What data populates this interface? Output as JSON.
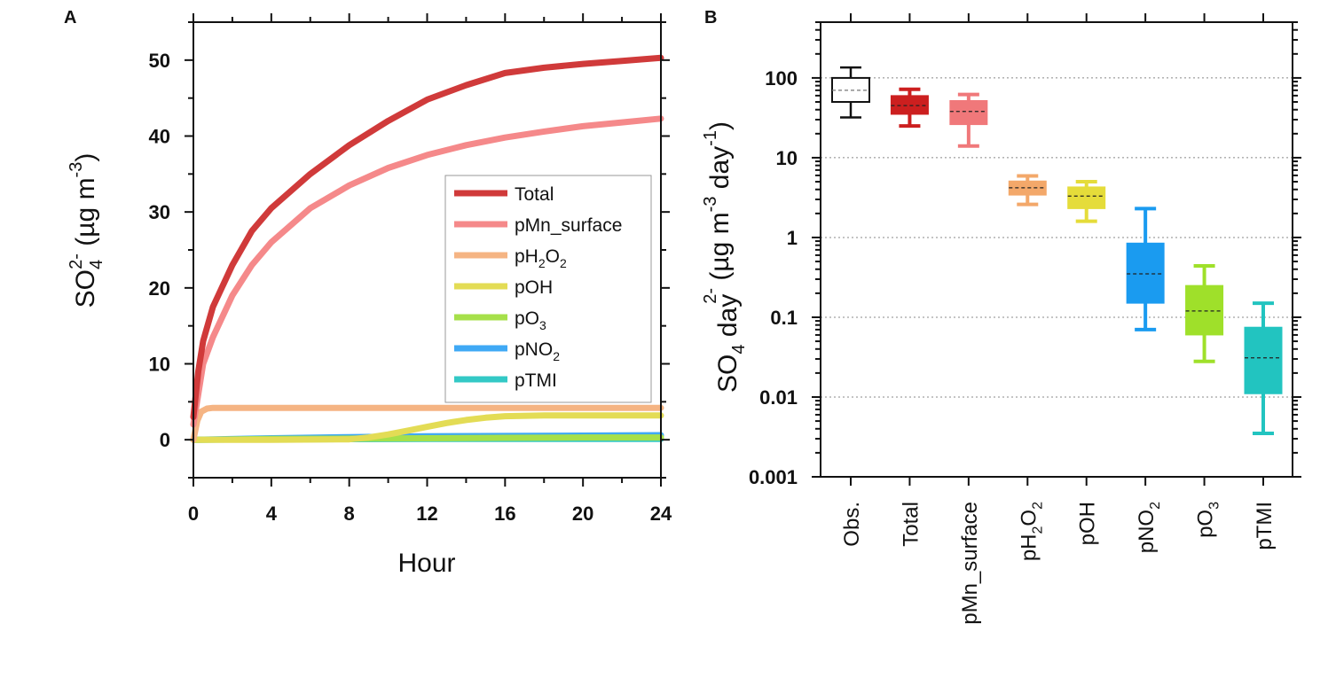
{
  "chart_data": [
    {
      "panel": "A",
      "type": "line",
      "xlabel": "Hour",
      "ylabel": {
        "base": "SO",
        "sub": "4",
        "sup": "2-",
        "rest": " (µg m",
        "unit_sup": "-3",
        "end": ")"
      },
      "xlim": [
        0,
        24
      ],
      "ylim": [
        -5,
        55
      ],
      "xticks": [
        0,
        4,
        8,
        12,
        16,
        20,
        24
      ],
      "yticks": [
        0,
        10,
        20,
        30,
        40,
        50
      ],
      "legend_position": "center-right",
      "series": [
        {
          "name": "Total",
          "label": {
            "base": "Total"
          },
          "color": "#d03a3a",
          "x": [
            0,
            0.25,
            0.5,
            1,
            2,
            3,
            4,
            6,
            8,
            10,
            12,
            14,
            16,
            18,
            20,
            22,
            24
          ],
          "y": [
            3,
            9,
            13,
            17.5,
            23,
            27.5,
            30.5,
            35,
            38.8,
            42,
            44.8,
            46.7,
            48.3,
            49,
            49.5,
            49.9,
            50.3
          ]
        },
        {
          "name": "pMn_surface",
          "label": {
            "base": "pMn_surface"
          },
          "color": "#f5898a",
          "x": [
            0,
            0.25,
            0.5,
            1,
            2,
            3,
            4,
            6,
            8,
            10,
            12,
            14,
            16,
            18,
            20,
            22,
            24
          ],
          "y": [
            2,
            6,
            10,
            13.5,
            19,
            23,
            26,
            30.5,
            33.5,
            35.8,
            37.5,
            38.8,
            39.8,
            40.6,
            41.3,
            41.8,
            42.3
          ]
        },
        {
          "name": "pH2O2",
          "label": {
            "base": "pH",
            "sub": "2",
            "mid": "O",
            "sub2": "2"
          },
          "color": "#f5b483",
          "x": [
            0,
            0.2,
            0.4,
            0.7,
            1,
            2,
            4,
            8,
            12,
            16,
            20,
            24
          ],
          "y": [
            0,
            2.5,
            3.7,
            4.1,
            4.2,
            4.2,
            4.2,
            4.2,
            4.2,
            4.2,
            4.2,
            4.2
          ]
        },
        {
          "name": "pOH",
          "label": {
            "base": "pOH"
          },
          "color": "#e3dc55",
          "x": [
            0,
            4,
            8,
            9,
            10,
            11,
            12,
            13,
            14,
            15,
            16,
            18,
            20,
            24
          ],
          "y": [
            0,
            0,
            0.05,
            0.3,
            0.7,
            1.2,
            1.7,
            2.2,
            2.6,
            2.9,
            3.1,
            3.2,
            3.2,
            3.2
          ]
        },
        {
          "name": "pO3",
          "label": {
            "base": "pO",
            "sub": "3"
          },
          "color": "#a6e04a",
          "x": [
            0,
            4,
            8,
            12,
            16,
            20,
            24
          ],
          "y": [
            0,
            0.1,
            0.15,
            0.2,
            0.25,
            0.3,
            0.3
          ]
        },
        {
          "name": "pNO2",
          "label": {
            "base": "pNO",
            "sub": "2"
          },
          "color": "#3fa9f5",
          "x": [
            0,
            4,
            8,
            12,
            16,
            20,
            24
          ],
          "y": [
            0,
            0.2,
            0.35,
            0.45,
            0.5,
            0.55,
            0.6
          ]
        },
        {
          "name": "pTMI",
          "label": {
            "base": "pTMI"
          },
          "color": "#33c9c6",
          "x": [
            0,
            4,
            8,
            12,
            16,
            20,
            24
          ],
          "y": [
            0,
            0.05,
            0.08,
            0.1,
            0.1,
            0.1,
            0.1
          ]
        }
      ]
    },
    {
      "panel": "B",
      "type": "box",
      "yscale": "log",
      "ylim": [
        0.001,
        500
      ],
      "ylabel": {
        "base": "SO",
        "sub": "4",
        "sup": "2-",
        "rest": " (µg m",
        "unit_sup": "-3",
        "mid": " day",
        "unit_sup2": "-1",
        "end": ")"
      },
      "yticks": [
        0.001,
        0.01,
        0.1,
        1,
        10,
        100
      ],
      "ytick_labels": [
        "0.001",
        "0.01",
        "0.1",
        "1",
        "10",
        "100"
      ],
      "grid": "horizontal dotted",
      "boxes": [
        {
          "name": "Obs.",
          "label": {
            "base": "Obs."
          },
          "color": "#ffffff",
          "edge": "#111111",
          "whisker_low": 32,
          "q1": 50,
          "median": 70,
          "q3": 100,
          "whisker_high": 135
        },
        {
          "name": "Total",
          "label": {
            "base": "Total"
          },
          "color": "#cc1f1f",
          "edge": "#cc1f1f",
          "whisker_low": 25,
          "q1": 35,
          "median": 45,
          "q3": 60,
          "whisker_high": 72
        },
        {
          "name": "pMn_surface",
          "label": {
            "base": "pMn_surface"
          },
          "color": "#f0787a",
          "edge": "#f0787a",
          "whisker_low": 14,
          "q1": 26,
          "median": 38,
          "q3": 52,
          "whisker_high": 62
        },
        {
          "name": "pH2O2",
          "label": {
            "base": "pH",
            "sub": "2",
            "mid": "O",
            "sub2": "2"
          },
          "color": "#f3a86a",
          "edge": "#f3a86a",
          "whisker_low": 2.6,
          "q1": 3.4,
          "median": 4.2,
          "q3": 5.1,
          "whisker_high": 5.9
        },
        {
          "name": "pOH",
          "label": {
            "base": "pOH"
          },
          "color": "#e5dc3a",
          "edge": "#e5dc3a",
          "whisker_low": 1.6,
          "q1": 2.3,
          "median": 3.3,
          "q3": 4.3,
          "whisker_high": 5.0
        },
        {
          "name": "pNO2",
          "label": {
            "base": "pNO",
            "sub": "2"
          },
          "color": "#1a9bf0",
          "edge": "#1a9bf0",
          "whisker_low": 0.07,
          "q1": 0.15,
          "median": 0.35,
          "q3": 0.85,
          "whisker_high": 2.3
        },
        {
          "name": "pO3",
          "label": {
            "base": "pO",
            "sub": "3"
          },
          "color": "#9fe02a",
          "edge": "#9fe02a",
          "whisker_low": 0.028,
          "q1": 0.06,
          "median": 0.12,
          "q3": 0.25,
          "whisker_high": 0.44
        },
        {
          "name": "pTMI",
          "label": {
            "base": "pTMI"
          },
          "color": "#22c4c0",
          "edge": "#22c4c0",
          "whisker_low": 0.0035,
          "q1": 0.011,
          "median": 0.031,
          "q3": 0.075,
          "whisker_high": 0.15
        }
      ]
    }
  ]
}
